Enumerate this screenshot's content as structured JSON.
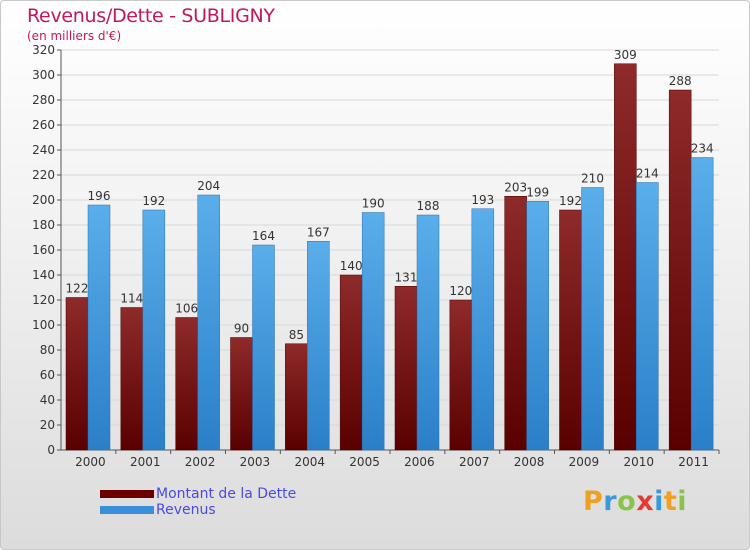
{
  "title": "Revenus/Dette - SUBLIGNY",
  "subtitle": "(en milliers d'€)",
  "logo": "Proxiti",
  "colors": {
    "dette": "#8b2020",
    "revenus": "#4a9fe0",
    "title": "#c2185b",
    "legend_text": "#4a4ae0"
  },
  "chart_data": {
    "type": "bar",
    "title": "Revenus/Dette - SUBLIGNY",
    "subtitle": "(en milliers d'€)",
    "categories": [
      "2000",
      "2001",
      "2002",
      "2003",
      "2004",
      "2005",
      "2006",
      "2007",
      "2008",
      "2009",
      "2010",
      "2011"
    ],
    "series": [
      {
        "name": "Montant de la Dette",
        "values": [
          122,
          114,
          106,
          90,
          85,
          140,
          131,
          120,
          203,
          192,
          309,
          288
        ]
      },
      {
        "name": "Revenus",
        "values": [
          196,
          192,
          204,
          164,
          167,
          190,
          188,
          193,
          199,
          210,
          214,
          234
        ]
      }
    ],
    "ylim": [
      0,
      320
    ],
    "yticks": [
      0,
      20,
      40,
      60,
      80,
      100,
      120,
      140,
      160,
      180,
      200,
      220,
      240,
      260,
      280,
      300,
      320
    ],
    "grid": true,
    "legend": "bottom-left"
  }
}
